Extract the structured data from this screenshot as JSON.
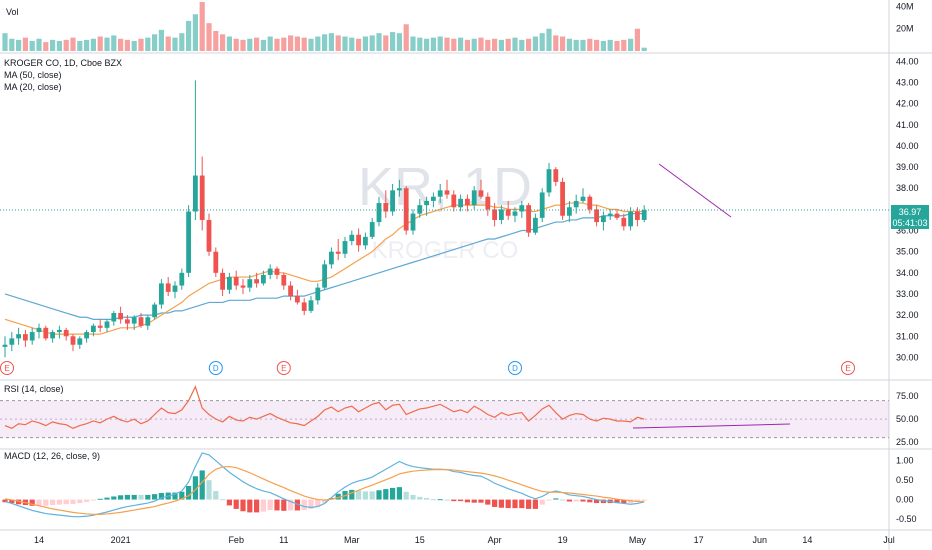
{
  "chart_data": {
    "type": "candlestick",
    "title": "KROGER CO, 1D, Cboe BZX",
    "watermark": {
      "ticker": "KR, 1D",
      "name": "KROGER CO"
    },
    "x_tick_labels": [
      "14",
      "2021",
      "Feb",
      "11",
      "Mar",
      "15",
      "Apr",
      "19",
      "May",
      "17",
      "Jun",
      "14",
      "Jul"
    ],
    "price_panel": {
      "ylim": [
        29.5,
        44.3
      ],
      "y_ticks": [
        "44.00",
        "43.00",
        "42.00",
        "41.00",
        "40.00",
        "39.00",
        "38.00",
        "37.00",
        "36.00",
        "35.00",
        "34.00",
        "33.00",
        "32.00",
        "31.00",
        "30.00"
      ],
      "last_price": "36.97",
      "countdown": "05:41:03",
      "legend": [
        "MA (50, close)",
        "MA (20, close)"
      ],
      "candles": [
        {
          "o": 30.5,
          "h": 31.0,
          "l": 30.0,
          "c": 30.6
        },
        {
          "o": 30.6,
          "h": 31.2,
          "l": 30.3,
          "c": 30.9
        },
        {
          "o": 30.9,
          "h": 31.4,
          "l": 30.6,
          "c": 31.1
        },
        {
          "o": 31.1,
          "h": 31.3,
          "l": 30.5,
          "c": 30.8
        },
        {
          "o": 30.8,
          "h": 31.4,
          "l": 30.6,
          "c": 31.2
        },
        {
          "o": 31.2,
          "h": 31.6,
          "l": 30.9,
          "c": 31.4
        },
        {
          "o": 31.4,
          "h": 31.5,
          "l": 30.8,
          "c": 30.9
        },
        {
          "o": 30.9,
          "h": 31.3,
          "l": 30.7,
          "c": 31.2
        },
        {
          "o": 31.2,
          "h": 31.5,
          "l": 30.9,
          "c": 31.3
        },
        {
          "o": 31.3,
          "h": 31.4,
          "l": 30.8,
          "c": 31.0
        },
        {
          "o": 31.0,
          "h": 31.1,
          "l": 30.3,
          "c": 30.6
        },
        {
          "o": 30.6,
          "h": 31.0,
          "l": 30.4,
          "c": 30.9
        },
        {
          "o": 30.9,
          "h": 31.3,
          "l": 30.7,
          "c": 31.2
        },
        {
          "o": 31.2,
          "h": 31.6,
          "l": 31.0,
          "c": 31.5
        },
        {
          "o": 31.5,
          "h": 31.8,
          "l": 31.2,
          "c": 31.4
        },
        {
          "o": 31.4,
          "h": 31.8,
          "l": 31.2,
          "c": 31.7
        },
        {
          "o": 31.7,
          "h": 32.2,
          "l": 31.5,
          "c": 32.1
        },
        {
          "o": 32.1,
          "h": 32.4,
          "l": 31.6,
          "c": 31.8
        },
        {
          "o": 31.8,
          "h": 32.0,
          "l": 31.3,
          "c": 31.6
        },
        {
          "o": 31.6,
          "h": 32.0,
          "l": 31.3,
          "c": 31.9
        },
        {
          "o": 31.9,
          "h": 32.1,
          "l": 31.4,
          "c": 31.5
        },
        {
          "o": 31.5,
          "h": 32.0,
          "l": 31.3,
          "c": 31.9
        },
        {
          "o": 31.9,
          "h": 32.6,
          "l": 31.8,
          "c": 32.5
        },
        {
          "o": 32.5,
          "h": 33.7,
          "l": 32.3,
          "c": 33.5
        },
        {
          "o": 33.5,
          "h": 33.8,
          "l": 32.9,
          "c": 33.1
        },
        {
          "o": 33.1,
          "h": 33.6,
          "l": 32.8,
          "c": 33.4
        },
        {
          "o": 33.4,
          "h": 34.2,
          "l": 33.2,
          "c": 34.0
        },
        {
          "o": 34.0,
          "h": 37.2,
          "l": 33.8,
          "c": 36.9
        },
        {
          "o": 36.9,
          "h": 43.1,
          "l": 36.5,
          "c": 38.6
        },
        {
          "o": 38.6,
          "h": 39.5,
          "l": 36.0,
          "c": 36.5
        },
        {
          "o": 36.5,
          "h": 36.8,
          "l": 34.8,
          "c": 35.0
        },
        {
          "o": 35.0,
          "h": 35.2,
          "l": 33.8,
          "c": 34.0
        },
        {
          "o": 34.0,
          "h": 34.2,
          "l": 32.9,
          "c": 33.2
        },
        {
          "o": 33.2,
          "h": 34.0,
          "l": 33.0,
          "c": 33.8
        },
        {
          "o": 33.8,
          "h": 34.1,
          "l": 33.2,
          "c": 33.4
        },
        {
          "o": 33.4,
          "h": 33.7,
          "l": 33.0,
          "c": 33.3
        },
        {
          "o": 33.3,
          "h": 33.9,
          "l": 33.1,
          "c": 33.7
        },
        {
          "o": 33.7,
          "h": 34.0,
          "l": 33.3,
          "c": 33.5
        },
        {
          "o": 33.5,
          "h": 34.1,
          "l": 33.4,
          "c": 33.9
        },
        {
          "o": 33.9,
          "h": 34.4,
          "l": 33.7,
          "c": 34.2
        },
        {
          "o": 34.2,
          "h": 34.3,
          "l": 33.7,
          "c": 33.9
        },
        {
          "o": 33.9,
          "h": 34.0,
          "l": 33.2,
          "c": 33.4
        },
        {
          "o": 33.4,
          "h": 33.6,
          "l": 32.7,
          "c": 32.9
        },
        {
          "o": 32.9,
          "h": 33.2,
          "l": 32.5,
          "c": 32.6
        },
        {
          "o": 32.6,
          "h": 32.8,
          "l": 32.0,
          "c": 32.2
        },
        {
          "o": 32.2,
          "h": 32.9,
          "l": 32.1,
          "c": 32.7
        },
        {
          "o": 32.7,
          "h": 33.5,
          "l": 32.5,
          "c": 33.3
        },
        {
          "o": 33.3,
          "h": 34.6,
          "l": 33.2,
          "c": 34.4
        },
        {
          "o": 34.4,
          "h": 35.2,
          "l": 34.2,
          "c": 35.0
        },
        {
          "o": 35.0,
          "h": 35.6,
          "l": 34.6,
          "c": 34.9
        },
        {
          "o": 34.9,
          "h": 35.7,
          "l": 34.7,
          "c": 35.5
        },
        {
          "o": 35.5,
          "h": 36.0,
          "l": 35.3,
          "c": 35.8
        },
        {
          "o": 35.8,
          "h": 36.1,
          "l": 35.0,
          "c": 35.3
        },
        {
          "o": 35.3,
          "h": 35.9,
          "l": 35.1,
          "c": 35.7
        },
        {
          "o": 35.7,
          "h": 36.6,
          "l": 35.6,
          "c": 36.4
        },
        {
          "o": 36.4,
          "h": 37.6,
          "l": 36.2,
          "c": 37.3
        },
        {
          "o": 37.3,
          "h": 37.9,
          "l": 36.6,
          "c": 36.9
        },
        {
          "o": 36.9,
          "h": 38.2,
          "l": 36.7,
          "c": 37.9
        },
        {
          "o": 37.9,
          "h": 38.4,
          "l": 37.6,
          "c": 38.0
        },
        {
          "o": 38.0,
          "h": 38.1,
          "l": 35.8,
          "c": 36.0
        },
        {
          "o": 36.0,
          "h": 37.0,
          "l": 35.8,
          "c": 36.8
        },
        {
          "o": 36.8,
          "h": 37.5,
          "l": 36.6,
          "c": 37.2
        },
        {
          "o": 37.2,
          "h": 37.6,
          "l": 36.7,
          "c": 37.4
        },
        {
          "o": 37.4,
          "h": 37.8,
          "l": 37.1,
          "c": 37.6
        },
        {
          "o": 37.6,
          "h": 38.2,
          "l": 37.3,
          "c": 37.9
        },
        {
          "o": 37.9,
          "h": 38.4,
          "l": 37.5,
          "c": 37.7
        },
        {
          "o": 37.7,
          "h": 37.9,
          "l": 36.9,
          "c": 37.1
        },
        {
          "o": 37.1,
          "h": 37.7,
          "l": 36.9,
          "c": 37.5
        },
        {
          "o": 37.5,
          "h": 37.7,
          "l": 36.9,
          "c": 37.2
        },
        {
          "o": 37.2,
          "h": 38.1,
          "l": 37.0,
          "c": 37.9
        },
        {
          "o": 37.9,
          "h": 38.4,
          "l": 37.5,
          "c": 37.6
        },
        {
          "o": 37.6,
          "h": 37.8,
          "l": 36.7,
          "c": 37.0
        },
        {
          "o": 37.0,
          "h": 37.3,
          "l": 36.2,
          "c": 36.5
        },
        {
          "o": 36.5,
          "h": 37.2,
          "l": 36.3,
          "c": 37.0
        },
        {
          "o": 37.0,
          "h": 37.4,
          "l": 36.5,
          "c": 36.7
        },
        {
          "o": 36.7,
          "h": 37.1,
          "l": 36.4,
          "c": 36.9
        },
        {
          "o": 36.9,
          "h": 37.4,
          "l": 36.6,
          "c": 37.2
        },
        {
          "o": 37.2,
          "h": 37.3,
          "l": 35.7,
          "c": 35.9
        },
        {
          "o": 35.9,
          "h": 36.8,
          "l": 35.8,
          "c": 36.6
        },
        {
          "o": 36.6,
          "h": 38.0,
          "l": 36.4,
          "c": 37.8
        },
        {
          "o": 37.8,
          "h": 39.2,
          "l": 37.6,
          "c": 38.9
        },
        {
          "o": 38.9,
          "h": 39.0,
          "l": 38.1,
          "c": 38.3
        },
        {
          "o": 38.3,
          "h": 38.5,
          "l": 36.5,
          "c": 36.7
        },
        {
          "o": 36.7,
          "h": 37.4,
          "l": 36.4,
          "c": 37.1
        },
        {
          "o": 37.1,
          "h": 37.7,
          "l": 36.8,
          "c": 37.4
        },
        {
          "o": 37.4,
          "h": 38.0,
          "l": 37.3,
          "c": 37.6
        },
        {
          "o": 37.6,
          "h": 37.7,
          "l": 36.8,
          "c": 37.0
        },
        {
          "o": 37.0,
          "h": 37.2,
          "l": 36.2,
          "c": 36.4
        },
        {
          "o": 36.4,
          "h": 36.9,
          "l": 36.0,
          "c": 36.7
        },
        {
          "o": 36.7,
          "h": 37.0,
          "l": 36.5,
          "c": 36.8
        },
        {
          "o": 36.8,
          "h": 37.0,
          "l": 36.5,
          "c": 36.6
        },
        {
          "o": 36.6,
          "h": 36.8,
          "l": 36.0,
          "c": 36.2
        },
        {
          "o": 36.2,
          "h": 37.1,
          "l": 36.0,
          "c": 36.9
        },
        {
          "o": 36.9,
          "h": 37.1,
          "l": 36.2,
          "c": 36.5
        },
        {
          "o": 36.5,
          "h": 37.2,
          "l": 36.4,
          "c": 36.97
        }
      ],
      "ma50": [
        33.0,
        32.9,
        32.8,
        32.7,
        32.6,
        32.5,
        32.4,
        32.3,
        32.2,
        32.1,
        32.0,
        31.9,
        31.9,
        31.8,
        31.8,
        31.8,
        31.8,
        31.9,
        31.9,
        31.9,
        32.0,
        32.0,
        32.0,
        32.1,
        32.1,
        32.2,
        32.2,
        32.3,
        32.4,
        32.5,
        32.6,
        32.6,
        32.6,
        32.7,
        32.7,
        32.7,
        32.7,
        32.8,
        32.8,
        32.8,
        32.8,
        32.9,
        32.9,
        32.9,
        32.9,
        33.0,
        33.1,
        33.2,
        33.3,
        33.4,
        33.5,
        33.6,
        33.7,
        33.8,
        33.9,
        34.0,
        34.1,
        34.2,
        34.3,
        34.4,
        34.5,
        34.6,
        34.7,
        34.8,
        34.9,
        35.0,
        35.1,
        35.2,
        35.3,
        35.4,
        35.5,
        35.6,
        35.6,
        35.7,
        35.8,
        35.9,
        36.0,
        36.0,
        36.1,
        36.2,
        36.3,
        36.4,
        36.4,
        36.5,
        36.5,
        36.6,
        36.6,
        36.6,
        36.7,
        36.7,
        36.7,
        36.7,
        36.8,
        36.8,
        36.8
      ],
      "ma20": [
        31.8,
        31.7,
        31.6,
        31.5,
        31.4,
        31.3,
        31.2,
        31.1,
        31.1,
        31.1,
        31.1,
        31.1,
        31.1,
        31.1,
        31.1,
        31.2,
        31.3,
        31.4,
        31.4,
        31.4,
        31.5,
        31.6,
        31.8,
        32.0,
        32.2,
        32.4,
        32.6,
        32.9,
        33.1,
        33.3,
        33.5,
        33.6,
        33.7,
        33.8,
        33.8,
        33.8,
        33.8,
        33.9,
        34.0,
        34.1,
        34.0,
        34.0,
        33.9,
        33.8,
        33.7,
        33.6,
        33.6,
        33.7,
        33.8,
        34.0,
        34.2,
        34.4,
        34.6,
        34.8,
        35.0,
        35.3,
        35.6,
        35.8,
        36.1,
        36.3,
        36.5,
        36.7,
        36.8,
        36.9,
        37.0,
        37.1,
        37.2,
        37.2,
        37.2,
        37.2,
        37.2,
        37.2,
        37.1,
        37.1,
        37.0,
        37.0,
        37.0,
        36.9,
        36.9,
        37.0,
        37.1,
        37.2,
        37.2,
        37.3,
        37.3,
        37.3,
        37.2,
        37.2,
        37.1,
        37.0,
        37.0,
        36.9,
        36.9,
        36.9,
        36.9
      ]
    },
    "volume_panel": {
      "label": "Vol",
      "y_ticks": [
        "40M",
        "20M"
      ],
      "ylim": [
        0,
        44
      ],
      "values": [
        16,
        11,
        10,
        12,
        9,
        11,
        8,
        10,
        9,
        10,
        12,
        9,
        10,
        11,
        13,
        12,
        14,
        11,
        10,
        9,
        11,
        12,
        15,
        19,
        13,
        12,
        16,
        27,
        33,
        44,
        25,
        18,
        15,
        13,
        11,
        10,
        11,
        12,
        10,
        13,
        11,
        12,
        14,
        13,
        12,
        11,
        13,
        15,
        16,
        14,
        13,
        12,
        11,
        13,
        14,
        16,
        14,
        17,
        16,
        24,
        13,
        12,
        11,
        12,
        13,
        12,
        11,
        12,
        10,
        11,
        12,
        10,
        11,
        10,
        11,
        12,
        10,
        11,
        13,
        16,
        20,
        14,
        13,
        11,
        10,
        10,
        11,
        10,
        9,
        10,
        9,
        10,
        11,
        20,
        3
      ]
    },
    "events": [
      {
        "label": "E",
        "index": 0
      },
      {
        "label": "D",
        "index": 31
      },
      {
        "label": "E",
        "index": 41
      },
      {
        "label": "D",
        "index": 75
      },
      {
        "label": "E",
        "index": 110
      }
    ],
    "rsi_panel": {
      "label": "RSI (14, close)",
      "y_ticks": [
        "75.00",
        "50.00",
        "25.00"
      ],
      "ylim": [
        22,
        88
      ],
      "band": [
        30,
        70
      ],
      "values": [
        43,
        40,
        45,
        44,
        48,
        46,
        43,
        47,
        45,
        44,
        40,
        43,
        45,
        48,
        46,
        50,
        53,
        49,
        47,
        50,
        45,
        48,
        55,
        62,
        57,
        56,
        60,
        70,
        85,
        62,
        55,
        50,
        47,
        53,
        49,
        48,
        52,
        50,
        53,
        56,
        52,
        49,
        46,
        45,
        43,
        48,
        53,
        60,
        63,
        58,
        62,
        64,
        58,
        62,
        66,
        68,
        60,
        65,
        66,
        55,
        58,
        61,
        62,
        64,
        66,
        62,
        58,
        60,
        57,
        64,
        60,
        55,
        52,
        57,
        54,
        56,
        57,
        48,
        54,
        61,
        65,
        57,
        50,
        54,
        56,
        55,
        50,
        48,
        51,
        50,
        48,
        48,
        47,
        52,
        50
      ]
    },
    "macd_panel": {
      "label": "MACD (12, 26, close, 9)",
      "y_ticks": [
        "1.00",
        "0.50",
        "0.00",
        "-0.50"
      ],
      "ylim": [
        -0.68,
        1.25
      ],
      "macd": [
        -0.05,
        -0.1,
        -0.16,
        -0.22,
        -0.28,
        -0.32,
        -0.36,
        -0.38,
        -0.4,
        -0.42,
        -0.44,
        -0.44,
        -0.43,
        -0.4,
        -0.36,
        -0.32,
        -0.27,
        -0.22,
        -0.18,
        -0.15,
        -0.12,
        -0.09,
        -0.04,
        0.04,
        0.09,
        0.14,
        0.22,
        0.45,
        0.85,
        1.2,
        1.15,
        1.0,
        0.85,
        0.7,
        0.58,
        0.46,
        0.36,
        0.28,
        0.22,
        0.18,
        0.1,
        0.02,
        -0.05,
        -0.12,
        -0.18,
        -0.2,
        -0.18,
        -0.1,
        0.05,
        0.2,
        0.32,
        0.42,
        0.48,
        0.52,
        0.58,
        0.68,
        0.78,
        0.88,
        0.98,
        0.9,
        0.85,
        0.82,
        0.8,
        0.78,
        0.78,
        0.77,
        0.72,
        0.7,
        0.65,
        0.62,
        0.6,
        0.52,
        0.42,
        0.35,
        0.28,
        0.22,
        0.16,
        0.08,
        0.02,
        0.08,
        0.18,
        0.22,
        0.18,
        0.12,
        0.1,
        0.08,
        0.04,
        0.0,
        -0.03,
        -0.05,
        -0.08,
        -0.1,
        -0.12,
        -0.1,
        -0.06
      ],
      "signal": [
        0.02,
        -0.01,
        -0.04,
        -0.08,
        -0.12,
        -0.16,
        -0.2,
        -0.24,
        -0.27,
        -0.3,
        -0.33,
        -0.35,
        -0.37,
        -0.38,
        -0.38,
        -0.37,
        -0.35,
        -0.33,
        -0.3,
        -0.27,
        -0.24,
        -0.21,
        -0.18,
        -0.13,
        -0.09,
        -0.04,
        0.02,
        0.1,
        0.25,
        0.45,
        0.65,
        0.78,
        0.84,
        0.85,
        0.82,
        0.76,
        0.69,
        0.61,
        0.53,
        0.45,
        0.38,
        0.31,
        0.23,
        0.16,
        0.09,
        0.04,
        0.0,
        -0.01,
        0.01,
        0.05,
        0.1,
        0.17,
        0.24,
        0.31,
        0.37,
        0.44,
        0.51,
        0.58,
        0.66,
        0.7,
        0.73,
        0.75,
        0.76,
        0.77,
        0.77,
        0.77,
        0.76,
        0.74,
        0.72,
        0.7,
        0.68,
        0.65,
        0.61,
        0.56,
        0.5,
        0.44,
        0.38,
        0.32,
        0.26,
        0.21,
        0.19,
        0.19,
        0.18,
        0.17,
        0.15,
        0.13,
        0.11,
        0.09,
        0.06,
        0.04,
        0.01,
        -0.01,
        -0.03,
        -0.05,
        -0.05
      ]
    }
  }
}
